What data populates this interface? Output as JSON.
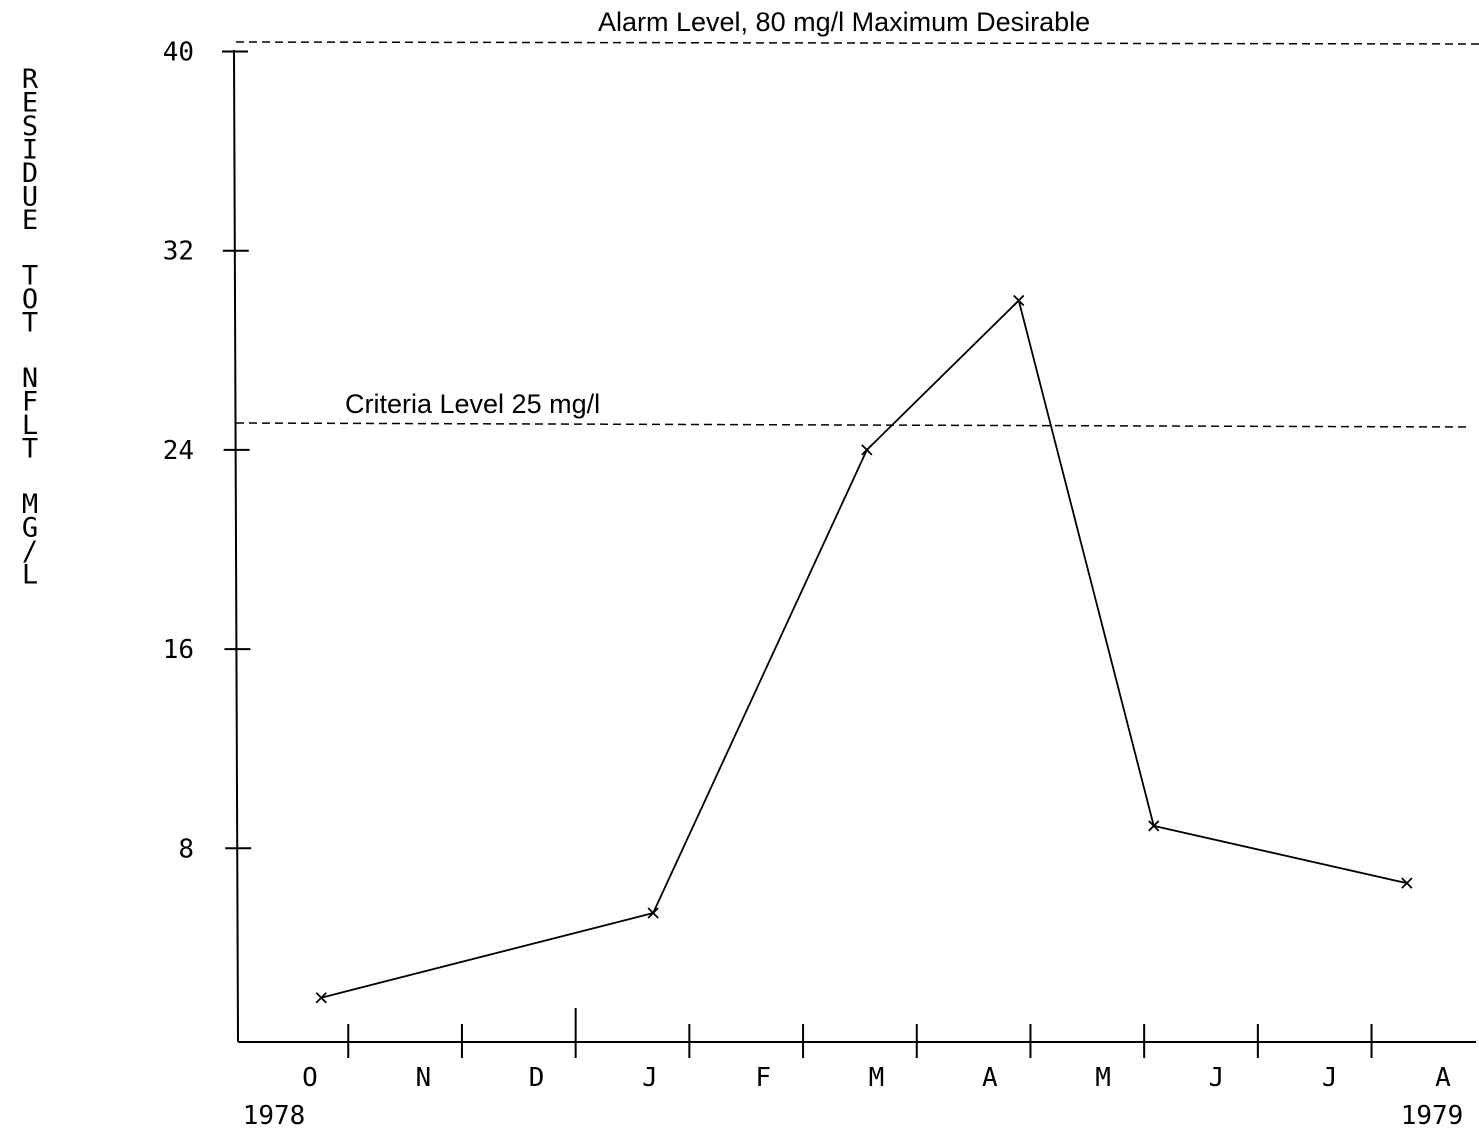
{
  "chart_data": {
    "type": "line",
    "ylabel": "RESIDUE TOT NFLT MG/L",
    "ylim": [
      0,
      40
    ],
    "yticks": [
      8,
      16,
      24,
      32,
      40
    ],
    "ytick_labels": [
      "8",
      "16",
      "24",
      "32",
      "40"
    ],
    "x_months": [
      "O",
      "N",
      "D",
      "J",
      "F",
      "M",
      "A",
      "M",
      "J",
      "J",
      "A"
    ],
    "x_year_start": "1978",
    "x_year_end": "1979",
    "series": [
      {
        "x": [
          0.1,
          3.05,
          4.95,
          6.3,
          7.5,
          9.75
        ],
        "y": [
          2.0,
          5.4,
          24.0,
          30.0,
          8.9,
          6.6
        ],
        "marker": "x"
      }
    ],
    "reference_lines": [
      {
        "y": 25,
        "label": "Criteria Level 25 mg/l"
      },
      {
        "y": 40.5,
        "label": "Alarm Level, 80 mg/l Maximum Desirable"
      }
    ],
    "grid": false,
    "colors": {
      "line": "#000000",
      "background": "#ffffff"
    }
  }
}
